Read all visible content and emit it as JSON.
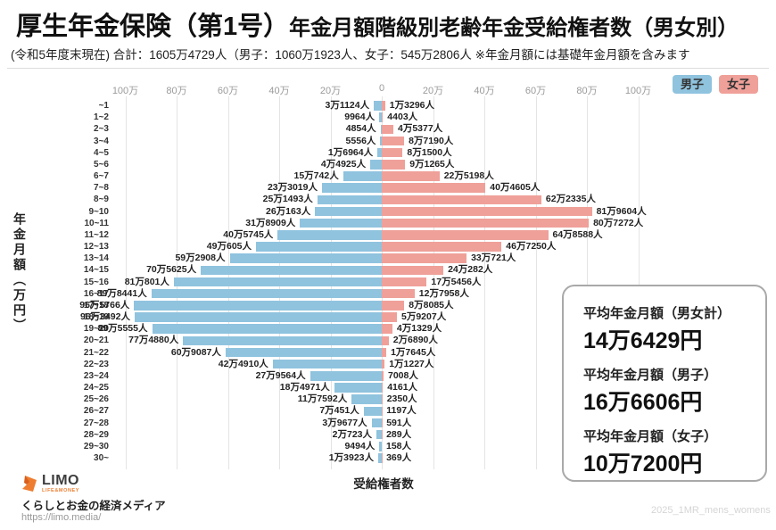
{
  "header": {
    "title_main": "厚生年金保険（第1号）",
    "title_rest": "年金月額階級別老齢年金受給権者数（男女別）",
    "subtitle": "(令和5年度末現在) 合計：1605万4729人（男子：1060万1923人、女子：545万2806人 ※年金月額には基礎年金月額を含みます"
  },
  "legend": {
    "male_label": "男子",
    "female_label": "女子"
  },
  "colors": {
    "male": "#8FC3DE",
    "female": "#EFA099",
    "grid": "#E4E4E4",
    "tick_text": "#9A9A9A"
  },
  "chart_data": {
    "type": "bar",
    "orientation": "horizontal-pyramid",
    "title": "厚生年金保険（第1号）年金月額階級別老齢年金受給権者数（男女別）",
    "xlabel": "受給権者数",
    "ylabel": "年金月額（万円）",
    "grid": true,
    "xlim": [
      -1100000,
      1100000
    ],
    "axis_ticks": [
      {
        "label": "100万",
        "position": -100
      },
      {
        "label": "80万",
        "position": -80
      },
      {
        "label": "60万",
        "position": -60
      },
      {
        "label": "40万",
        "position": -40
      },
      {
        "label": "20万",
        "position": -20
      },
      {
        "label": "0",
        "position": 0
      },
      {
        "label": "20万",
        "position": 20
      },
      {
        "label": "40万",
        "position": 40
      },
      {
        "label": "60万",
        "position": 60
      },
      {
        "label": "80万",
        "position": 80
      },
      {
        "label": "100万",
        "position": 100
      }
    ],
    "categories": [
      "~1",
      "1~2",
      "2~3",
      "3~4",
      "4~5",
      "5~6",
      "6~7",
      "7~8",
      "8~9",
      "9~10",
      "10~11",
      "11~12",
      "12~13",
      "13~14",
      "14~15",
      "15~16",
      "16~17",
      "17~18",
      "18~19",
      "19~20",
      "20~21",
      "21~22",
      "22~23",
      "23~24",
      "24~25",
      "25~26",
      "26~27",
      "27~28",
      "28~29",
      "29~30",
      "30~"
    ],
    "series": [
      {
        "name": "男子",
        "side": "left",
        "color": "#8FC3DE",
        "total_label": "男子：1060万1923人",
        "values": [
          31124,
          9964,
          4854,
          5556,
          16964,
          44925,
          150742,
          233019,
          251493,
          260163,
          318909,
          405745,
          490605,
          592908,
          705625,
          810801,
          898441,
          965766,
          963492,
          895555,
          774880,
          609087,
          424910,
          279564,
          184971,
          117592,
          70451,
          39677,
          20723,
          9494,
          13923
        ],
        "labels": [
          "3万1124人",
          "9964人",
          "4854人",
          "5556人",
          "1万6964人",
          "4万4925人",
          "15万742人",
          "23万3019人",
          "25万1493人",
          "26万163人",
          "31万8909人",
          "40万5745人",
          "49万605人",
          "59万2908人",
          "70万5625人",
          "81万801人",
          "89万8441人",
          "96万5766人",
          "96万3492人",
          "89万5555人",
          "77万4880人",
          "60万9087人",
          "42万4910人",
          "27万9564人",
          "18万4971人",
          "11万7592人",
          "7万451人",
          "3万9677人",
          "2万723人",
          "9494人",
          "1万3923人"
        ]
      },
      {
        "name": "女子",
        "side": "right",
        "color": "#EFA099",
        "total_label": "女子：545万2806人",
        "values": [
          13296,
          4403,
          45377,
          87190,
          81500,
          91265,
          225198,
          404605,
          622335,
          819604,
          807272,
          648588,
          467250,
          330721,
          240282,
          175456,
          127958,
          88085,
          59207,
          41329,
          26890,
          17645,
          11227,
          7008,
          4161,
          2350,
          1197,
          591,
          289,
          158,
          369
        ],
        "labels": [
          "1万3296人",
          "4403人",
          "4万5377人",
          "8万7190人",
          "8万1500人",
          "9万1265人",
          "22万5198人",
          "40万4605人",
          "62万2335人",
          "81万9604人",
          "80万7272人",
          "64万8588人",
          "46万7250人",
          "33万721人",
          "24万282人",
          "17万5456人",
          "12万7958人",
          "8万8085人",
          "5万9207人",
          "4万1329人",
          "2万6890人",
          "1万7645人",
          "1万1227人",
          "7008人",
          "4161人",
          "2350人",
          "1197人",
          "591人",
          "289人",
          "158人",
          "369人"
        ]
      }
    ]
  },
  "summary_box": {
    "items": [
      {
        "label": "平均年金月額（男女計）",
        "value": "14万6429円"
      },
      {
        "label": "平均年金月額（男子）",
        "value": "16万6606円"
      },
      {
        "label": "平均年金月額（女子）",
        "value": "10万7200円"
      }
    ]
  },
  "footer": {
    "brand": "LIMO",
    "brand_sub": "LIFE&MONEY",
    "tagline": "くらしとお金の経済メディア",
    "url": "https://limo.media/",
    "watermark": "2025_1MR_mens_womens"
  }
}
